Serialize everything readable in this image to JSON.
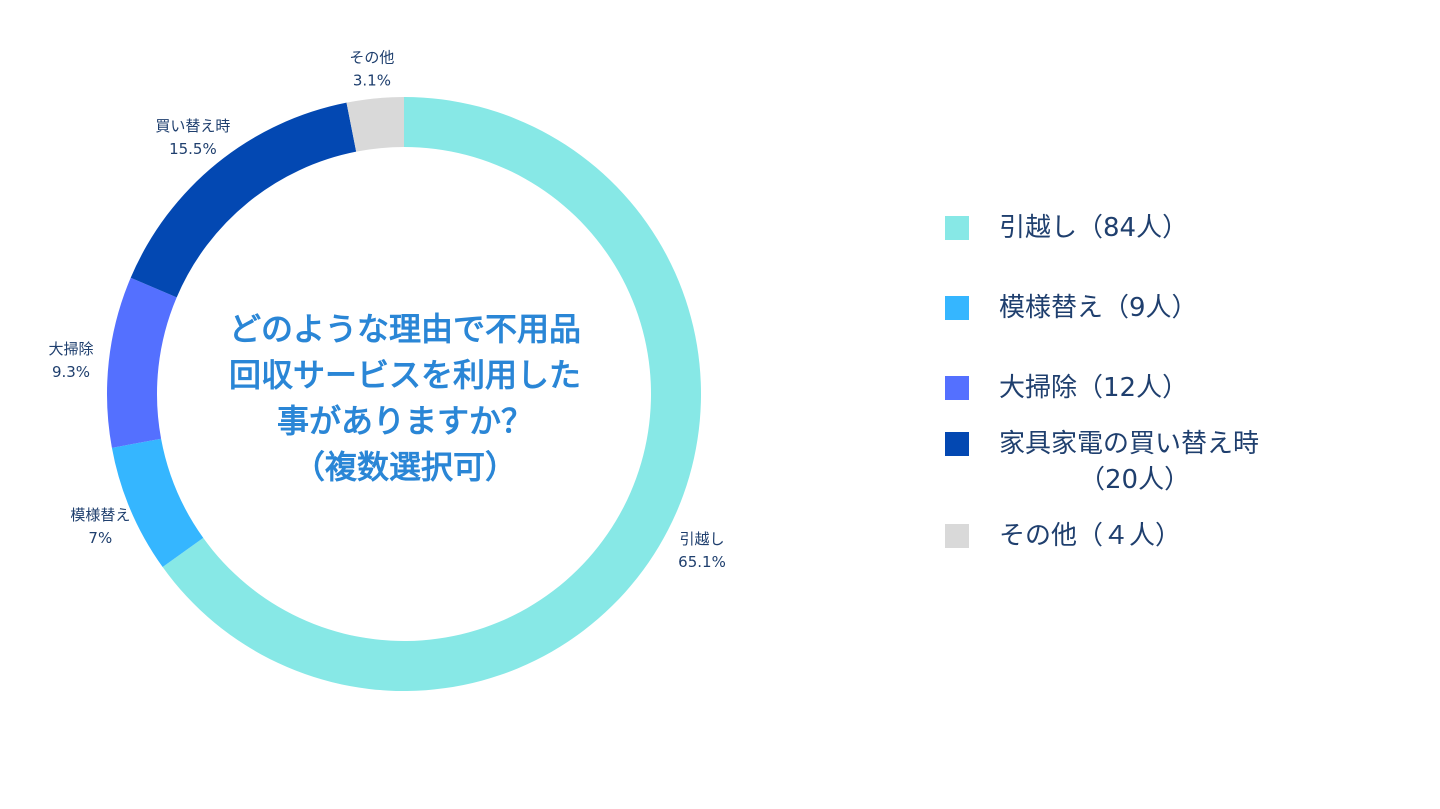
{
  "chart_data": {
    "type": "pie",
    "style": "donut",
    "title_lines": [
      "どのような理由で不用品",
      "回収サービスを利用した",
      "事がありますか？",
      "（複数選択可）"
    ],
    "slices": [
      {
        "label": "引越し",
        "percent_label": "65.1%",
        "value": 65.1,
        "color": "#87e8e6",
        "legend": "引越し（84人）"
      },
      {
        "label": "模様替え",
        "percent_label": "7%",
        "value": 7.0,
        "color": "#35b6ff",
        "legend": "模様替え（9人）"
      },
      {
        "label": "大掃除",
        "percent_label": "9.3%",
        "value": 9.3,
        "color": "#5470ff",
        "legend": "大掃除（12人）"
      },
      {
        "label": "買い替え時",
        "percent_label": "15.5%",
        "value": 15.5,
        "color": "#0348b2",
        "legend": "家具家電の買い替え時（20人）",
        "legend_lines": [
          "家具家電の買い替え時",
          "（20人）"
        ]
      },
      {
        "label": "その他",
        "percent_label": "3.1%",
        "value": 3.1,
        "color": "#d9d9d9",
        "legend": "その他（４人）"
      }
    ],
    "legend_placement": "right"
  }
}
